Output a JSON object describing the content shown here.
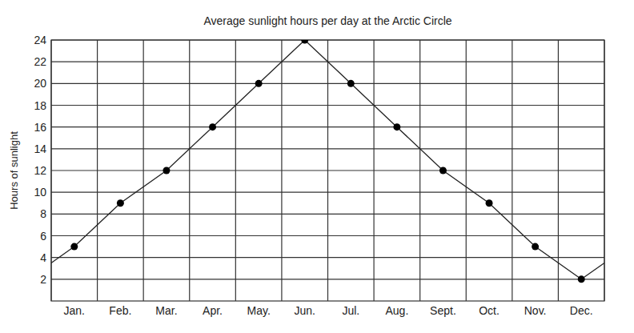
{
  "chart_data": {
    "type": "line",
    "title": "Average sunlight hours per day at the Arctic Circle",
    "y_label": "Hours of sunlight",
    "categories": [
      "Jan.",
      "Feb.",
      "Mar.",
      "Apr.",
      "May.",
      "Jun.",
      "Jul.",
      "Aug.",
      "Sept.",
      "Oct.",
      "Nov.",
      "Dec."
    ],
    "values": [
      5,
      9,
      12,
      16,
      20,
      24,
      20,
      16,
      12,
      9,
      5,
      2
    ],
    "color": "#222222",
    "marker": "circle",
    "line_style": "solid",
    "ylim": [
      0,
      24
    ],
    "yticks": [
      2,
      4,
      6,
      8,
      10,
      12,
      14,
      16,
      18,
      20,
      22,
      24
    ],
    "grid": true
  }
}
